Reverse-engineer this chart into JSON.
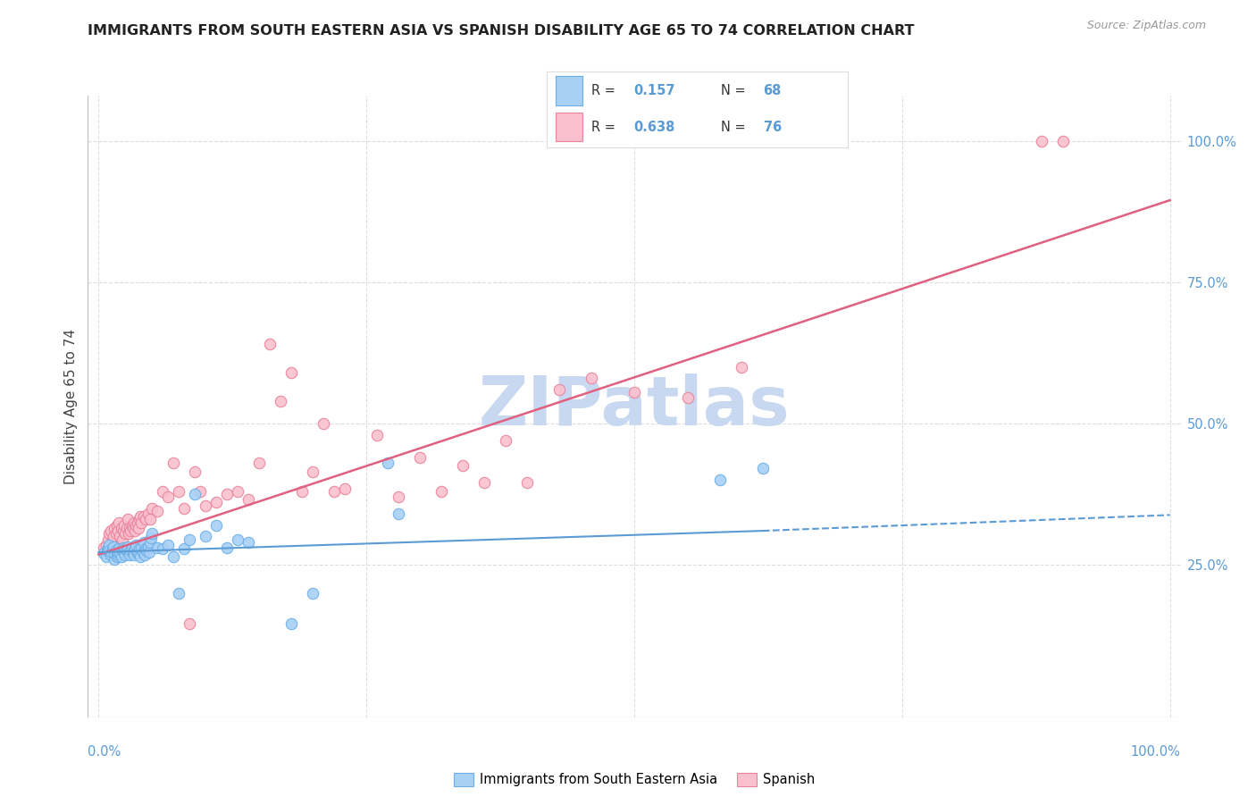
{
  "title": "IMMIGRANTS FROM SOUTH EASTERN ASIA VS SPANISH DISABILITY AGE 65 TO 74 CORRELATION CHART",
  "source": "Source: ZipAtlas.com",
  "ylabel": "Disability Age 65 to 74",
  "ytick_vals": [
    0.25,
    0.5,
    0.75,
    1.0
  ],
  "ytick_labels": [
    "25.0%",
    "50.0%",
    "75.0%",
    "100.0%"
  ],
  "xlim": [
    -0.01,
    1.01
  ],
  "ylim": [
    -0.02,
    1.08
  ],
  "legend_labels": [
    "Immigrants from South Eastern Asia",
    "Spanish"
  ],
  "blue_color": "#a8d0f5",
  "pink_color": "#f9c0ce",
  "blue_edge_color": "#6aaee8",
  "pink_edge_color": "#e8829a",
  "blue_line_color": "#5b9bd5",
  "pink_line_color": "#e06080",
  "R_blue": "0.157",
  "N_blue": "68",
  "R_pink": "0.638",
  "N_pink": "76",
  "blue_scatter_x": [
    0.005,
    0.007,
    0.008,
    0.009,
    0.01,
    0.01,
    0.011,
    0.012,
    0.013,
    0.014,
    0.015,
    0.015,
    0.016,
    0.017,
    0.018,
    0.018,
    0.019,
    0.02,
    0.021,
    0.022,
    0.023,
    0.024,
    0.025,
    0.025,
    0.026,
    0.027,
    0.028,
    0.029,
    0.03,
    0.031,
    0.032,
    0.033,
    0.034,
    0.035,
    0.036,
    0.037,
    0.038,
    0.039,
    0.04,
    0.041,
    0.042,
    0.043,
    0.044,
    0.045,
    0.046,
    0.047,
    0.048,
    0.049,
    0.05,
    0.055,
    0.06,
    0.065,
    0.07,
    0.075,
    0.08,
    0.085,
    0.09,
    0.1,
    0.11,
    0.12,
    0.13,
    0.14,
    0.18,
    0.2,
    0.27,
    0.28,
    0.58,
    0.62
  ],
  "blue_scatter_y": [
    0.27,
    0.265,
    0.275,
    0.28,
    0.285,
    0.275,
    0.268,
    0.272,
    0.278,
    0.282,
    0.26,
    0.27,
    0.275,
    0.265,
    0.268,
    0.272,
    0.278,
    0.27,
    0.265,
    0.275,
    0.28,
    0.272,
    0.268,
    0.278,
    0.275,
    0.282,
    0.27,
    0.268,
    0.275,
    0.28,
    0.272,
    0.268,
    0.278,
    0.285,
    0.27,
    0.272,
    0.278,
    0.265,
    0.28,
    0.272,
    0.29,
    0.268,
    0.278,
    0.275,
    0.282,
    0.272,
    0.29,
    0.298,
    0.305,
    0.28,
    0.278,
    0.285,
    0.265,
    0.2,
    0.278,
    0.295,
    0.375,
    0.3,
    0.32,
    0.28,
    0.295,
    0.29,
    0.145,
    0.2,
    0.43,
    0.34,
    0.4,
    0.42
  ],
  "pink_scatter_x": [
    0.005,
    0.007,
    0.009,
    0.01,
    0.011,
    0.013,
    0.014,
    0.015,
    0.016,
    0.017,
    0.018,
    0.019,
    0.02,
    0.021,
    0.022,
    0.023,
    0.024,
    0.025,
    0.026,
    0.027,
    0.028,
    0.029,
    0.03,
    0.031,
    0.032,
    0.033,
    0.034,
    0.035,
    0.036,
    0.037,
    0.038,
    0.039,
    0.04,
    0.042,
    0.044,
    0.046,
    0.048,
    0.05,
    0.055,
    0.06,
    0.065,
    0.07,
    0.075,
    0.08,
    0.085,
    0.09,
    0.095,
    0.1,
    0.11,
    0.12,
    0.13,
    0.14,
    0.15,
    0.16,
    0.17,
    0.18,
    0.19,
    0.2,
    0.21,
    0.22,
    0.23,
    0.26,
    0.28,
    0.3,
    0.32,
    0.34,
    0.36,
    0.38,
    0.4,
    0.43,
    0.46,
    0.5,
    0.55,
    0.6,
    0.88,
    0.9
  ],
  "pink_scatter_y": [
    0.28,
    0.285,
    0.295,
    0.305,
    0.31,
    0.295,
    0.3,
    0.315,
    0.305,
    0.32,
    0.31,
    0.325,
    0.3,
    0.315,
    0.295,
    0.31,
    0.32,
    0.305,
    0.315,
    0.33,
    0.305,
    0.315,
    0.31,
    0.32,
    0.315,
    0.325,
    0.31,
    0.32,
    0.325,
    0.315,
    0.33,
    0.335,
    0.325,
    0.335,
    0.33,
    0.34,
    0.33,
    0.35,
    0.345,
    0.38,
    0.37,
    0.43,
    0.38,
    0.35,
    0.145,
    0.415,
    0.38,
    0.355,
    0.36,
    0.375,
    0.38,
    0.365,
    0.43,
    0.64,
    0.54,
    0.59,
    0.38,
    0.415,
    0.5,
    0.38,
    0.385,
    0.48,
    0.37,
    0.44,
    0.38,
    0.425,
    0.395,
    0.47,
    0.395,
    0.56,
    0.58,
    0.555,
    0.545,
    0.6,
    1.0,
    1.0
  ],
  "watermark": "ZIPatlas",
  "watermark_color": "#c8d8f0",
  "background_color": "#ffffff",
  "grid_color": "#dddddd",
  "blue_line_x0": 0.0,
  "blue_line_x1": 1.0,
  "pink_line_x0": 0.0,
  "pink_line_x1": 1.0
}
